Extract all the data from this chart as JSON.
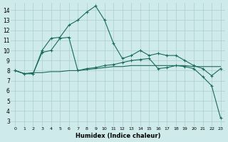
{
  "xlabel": "Humidex (Indice chaleur)",
  "background_color": "#ceeaea",
  "grid_color": "#aacece",
  "line_color": "#1a6b5a",
  "xlim": [
    -0.5,
    23.5
  ],
  "ylim": [
    2.5,
    14.7
  ],
  "yticks": [
    3,
    4,
    5,
    6,
    7,
    8,
    9,
    10,
    11,
    12,
    13,
    14
  ],
  "xticks": [
    0,
    1,
    2,
    3,
    4,
    5,
    6,
    7,
    8,
    9,
    10,
    11,
    12,
    13,
    14,
    15,
    16,
    17,
    18,
    19,
    20,
    21,
    22,
    23
  ],
  "line1_x": [
    0,
    1,
    2,
    3,
    4,
    5,
    6,
    7,
    8,
    9,
    10,
    11,
    12,
    13,
    14,
    15,
    16,
    17,
    18,
    19,
    20,
    21,
    22,
    23
  ],
  "line1_y": [
    8.0,
    7.7,
    7.7,
    10.0,
    11.2,
    11.3,
    12.5,
    13.0,
    13.8,
    14.4,
    13.0,
    10.7,
    9.2,
    9.5,
    10.0,
    9.5,
    9.7,
    9.5,
    9.5,
    9.0,
    8.5,
    8.2,
    7.5,
    8.2
  ],
  "line2_x": [
    0,
    1,
    2,
    3,
    4,
    5,
    6,
    7,
    8,
    9,
    10,
    11,
    12,
    13,
    14,
    15,
    16,
    17,
    18,
    19,
    20,
    21,
    22,
    23
  ],
  "line2_y": [
    8.0,
    7.7,
    7.8,
    7.8,
    7.9,
    7.9,
    8.0,
    8.0,
    8.1,
    8.2,
    8.3,
    8.4,
    8.4,
    8.5,
    8.5,
    8.5,
    8.5,
    8.5,
    8.5,
    8.5,
    8.4,
    8.4,
    8.4,
    8.4
  ],
  "line3_x": [
    0,
    1,
    2,
    3,
    4,
    5,
    6,
    7,
    8,
    9,
    10,
    11,
    12,
    13,
    14,
    15,
    16,
    17,
    18,
    19,
    20,
    21,
    22,
    23
  ],
  "line3_y": [
    8.0,
    7.7,
    7.7,
    9.8,
    10.0,
    11.2,
    11.3,
    8.0,
    8.2,
    8.3,
    8.5,
    8.6,
    8.8,
    9.0,
    9.1,
    9.2,
    8.2,
    8.3,
    8.5,
    8.4,
    8.2,
    7.4,
    6.5,
    3.3
  ]
}
